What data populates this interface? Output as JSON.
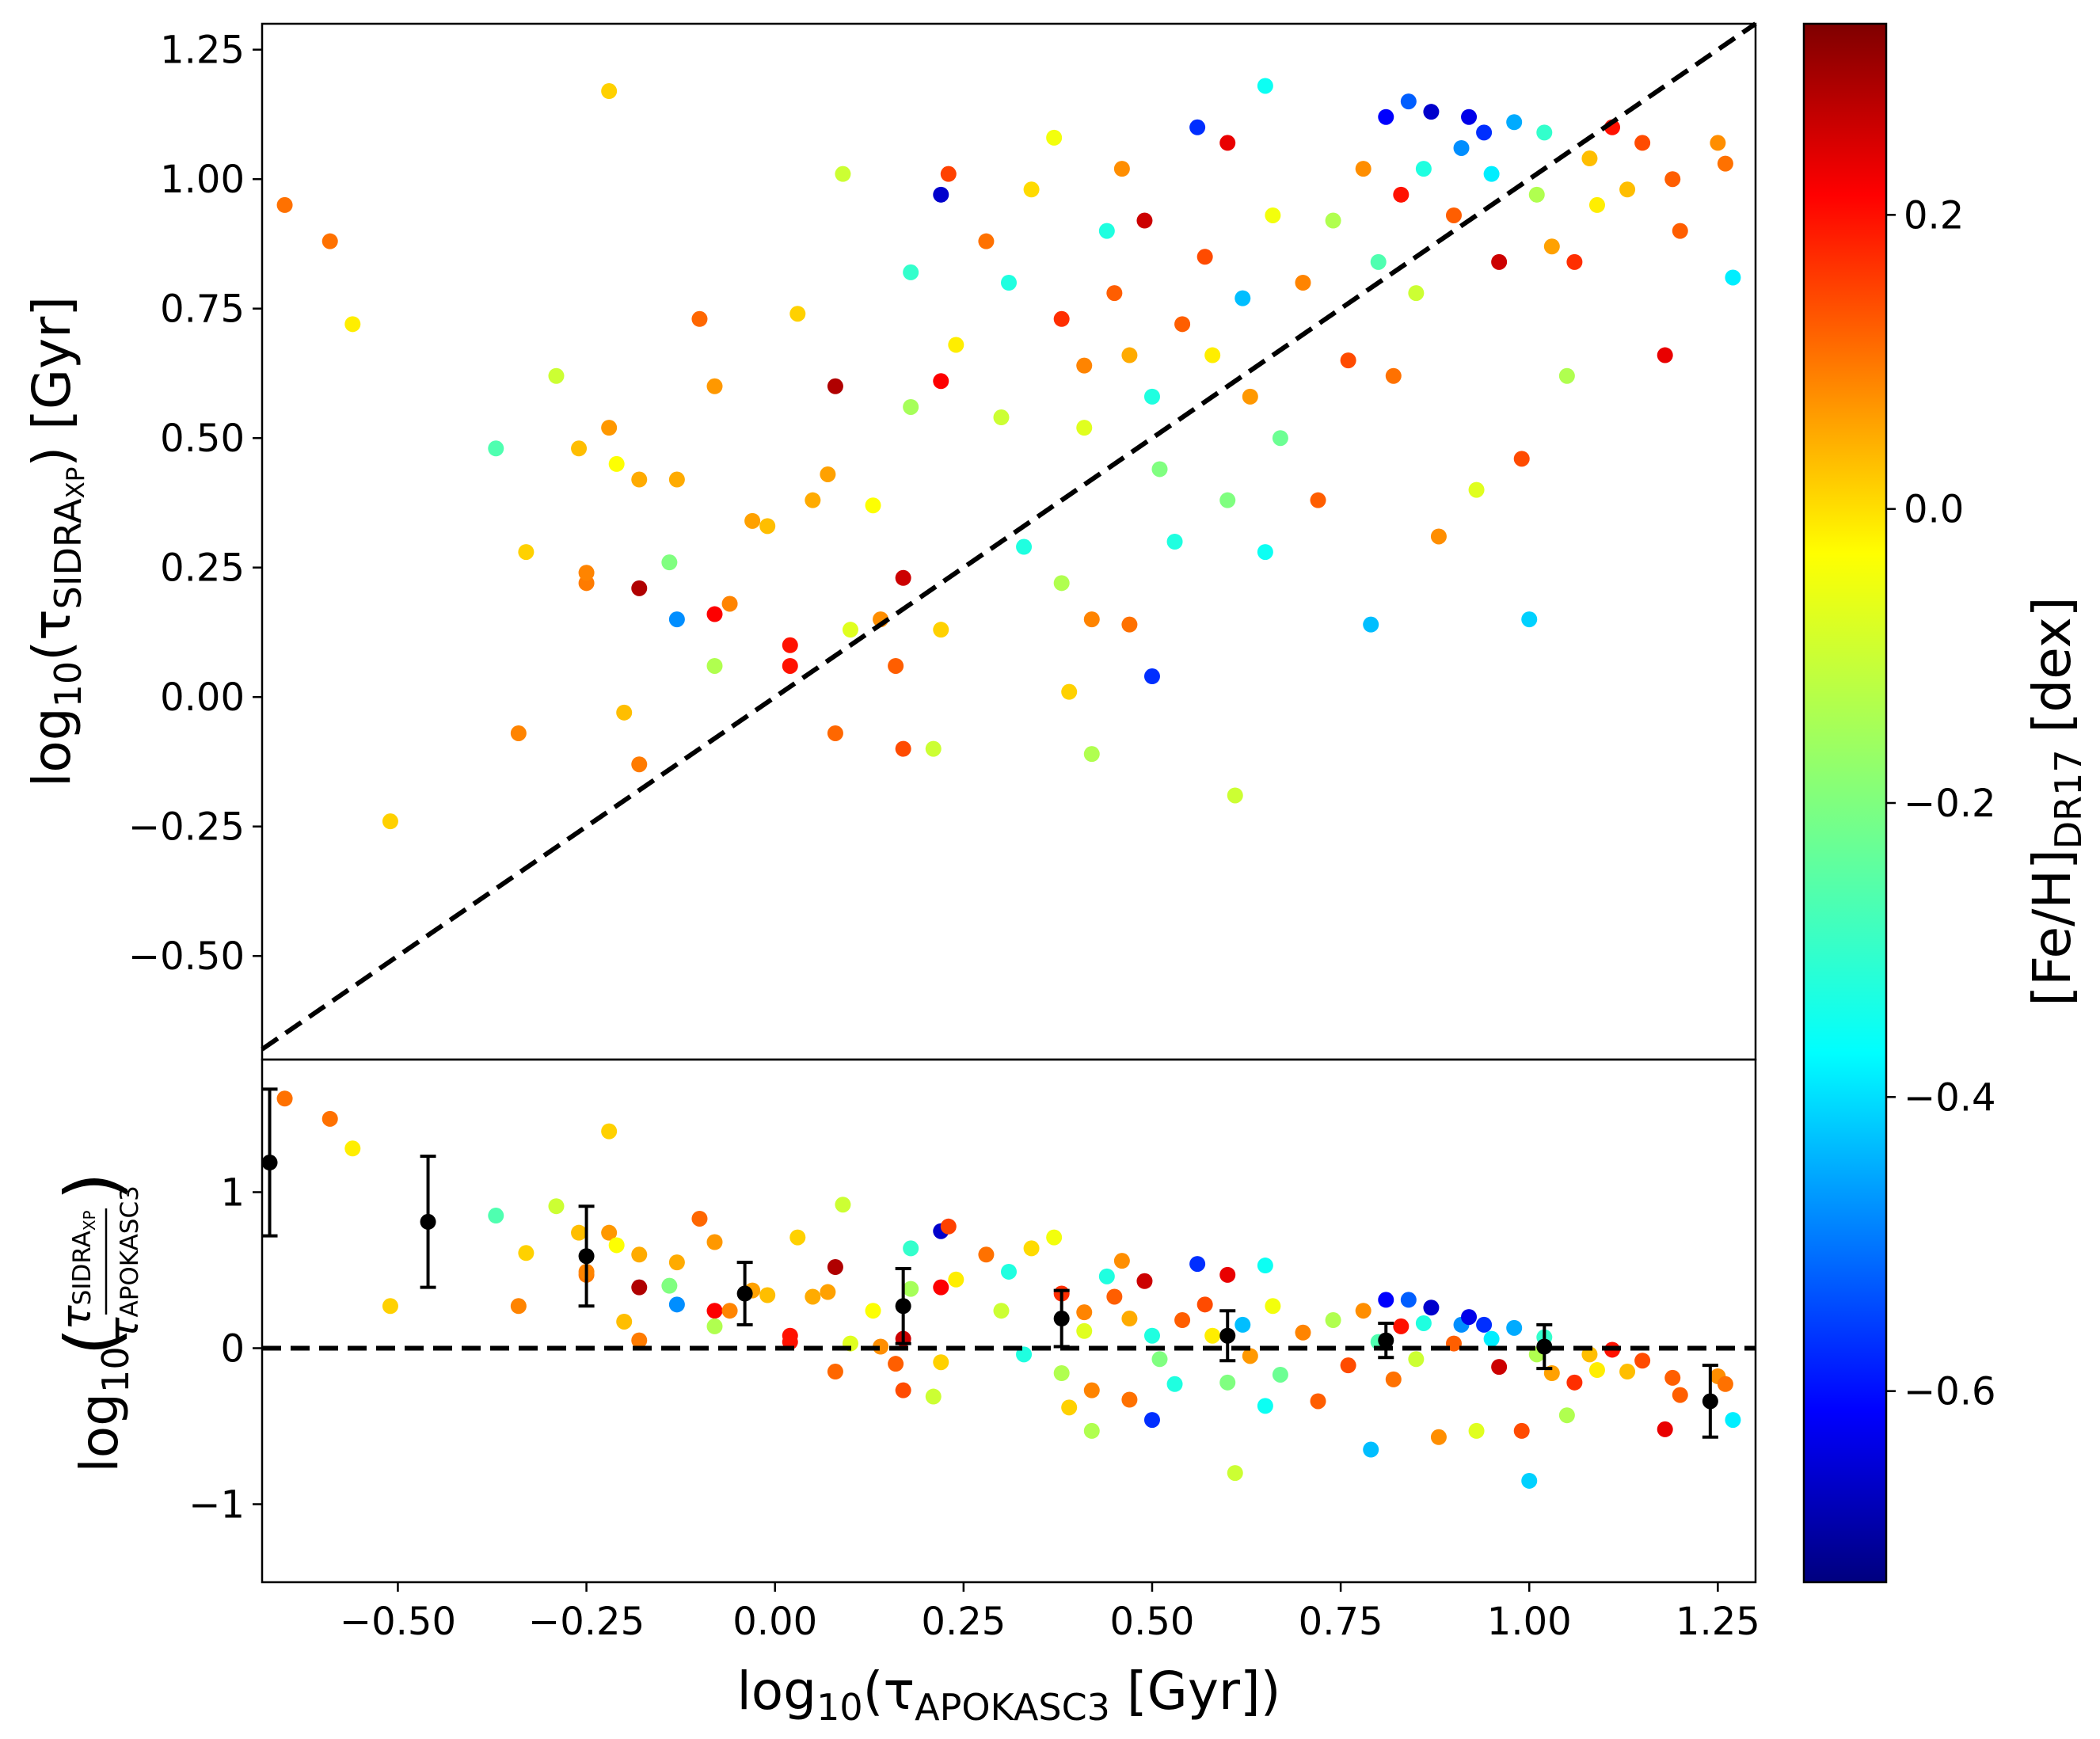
{
  "chart_data": [
    {
      "type": "scatter",
      "panel": "top",
      "xlabel": "log10(τAPOKASC3 [Gyr])",
      "ylabel": "log10(τSIDRAXP) [Gyr]",
      "xlim": [
        -0.68,
        1.3
      ],
      "ylim": [
        -0.7,
        1.3
      ],
      "x_ticks": [
        "−0.50",
        "−0.25",
        "0.00",
        "0.25",
        "0.50",
        "0.75",
        "1.00",
        "1.25"
      ],
      "y_ticks": [
        "−0.50",
        "−0.25",
        "0.00",
        "0.25",
        "0.50",
        "0.75",
        "1.00",
        "1.25"
      ],
      "reference_line": {
        "style": "dashed",
        "color": "#000000",
        "relation": "y = x"
      },
      "color_by": "[Fe/H]DR17",
      "points": [
        {
          "x": -0.65,
          "y": 0.95,
          "feh": 0.08
        },
        {
          "x": -0.59,
          "y": 0.88,
          "feh": 0.08
        },
        {
          "x": -0.56,
          "y": 0.72,
          "feh": -0.05
        },
        {
          "x": -0.51,
          "y": -0.24,
          "feh": -0.02
        },
        {
          "x": -0.37,
          "y": 0.48,
          "feh": -0.25
        },
        {
          "x": -0.34,
          "y": -0.07,
          "feh": 0.06
        },
        {
          "x": -0.33,
          "y": 0.28,
          "feh": -0.02
        },
        {
          "x": -0.29,
          "y": 0.62,
          "feh": -0.12
        },
        {
          "x": -0.26,
          "y": 0.48,
          "feh": 0.0
        },
        {
          "x": -0.25,
          "y": 0.22,
          "feh": 0.07
        },
        {
          "x": -0.25,
          "y": 0.24,
          "feh": 0.06
        },
        {
          "x": -0.22,
          "y": 1.17,
          "feh": -0.02
        },
        {
          "x": -0.22,
          "y": 0.52,
          "feh": 0.04
        },
        {
          "x": -0.21,
          "y": 0.45,
          "feh": -0.07
        },
        {
          "x": -0.2,
          "y": -0.03,
          "feh": 0.0
        },
        {
          "x": -0.18,
          "y": 0.42,
          "feh": 0.02
        },
        {
          "x": -0.18,
          "y": 0.21,
          "feh": 0.28
        },
        {
          "x": -0.18,
          "y": -0.13,
          "feh": 0.07
        },
        {
          "x": -0.14,
          "y": 0.26,
          "feh": -0.2
        },
        {
          "x": -0.13,
          "y": 0.42,
          "feh": 0.02
        },
        {
          "x": -0.13,
          "y": 0.15,
          "feh": -0.45
        },
        {
          "x": -0.1,
          "y": 0.73,
          "feh": 0.09
        },
        {
          "x": -0.08,
          "y": 0.6,
          "feh": 0.04
        },
        {
          "x": -0.08,
          "y": 0.16,
          "feh": 0.2
        },
        {
          "x": -0.08,
          "y": 0.06,
          "feh": -0.15
        },
        {
          "x": -0.06,
          "y": 0.18,
          "feh": 0.06
        },
        {
          "x": -0.03,
          "y": 0.34,
          "feh": 0.03
        },
        {
          "x": -0.01,
          "y": 0.33,
          "feh": 0.0
        },
        {
          "x": 0.02,
          "y": 0.1,
          "feh": 0.18
        },
        {
          "x": 0.02,
          "y": 0.06,
          "feh": 0.18
        },
        {
          "x": 0.03,
          "y": 0.74,
          "feh": -0.02
        },
        {
          "x": 0.05,
          "y": 0.38,
          "feh": 0.02
        },
        {
          "x": 0.07,
          "y": 0.43,
          "feh": 0.03
        },
        {
          "x": 0.08,
          "y": 0.6,
          "feh": 0.28
        },
        {
          "x": 0.08,
          "y": -0.07,
          "feh": 0.09
        },
        {
          "x": 0.09,
          "y": 1.01,
          "feh": -0.12
        },
        {
          "x": 0.1,
          "y": 0.13,
          "feh": -0.1
        },
        {
          "x": 0.13,
          "y": 0.37,
          "feh": -0.07
        },
        {
          "x": 0.14,
          "y": 0.15,
          "feh": 0.05
        },
        {
          "x": 0.16,
          "y": 0.06,
          "feh": 0.1
        },
        {
          "x": 0.17,
          "y": 0.23,
          "feh": 0.25
        },
        {
          "x": 0.17,
          "y": -0.1,
          "feh": 0.12
        },
        {
          "x": 0.18,
          "y": 0.82,
          "feh": -0.28
        },
        {
          "x": 0.18,
          "y": 0.56,
          "feh": -0.16
        },
        {
          "x": 0.21,
          "y": -0.1,
          "feh": -0.12
        },
        {
          "x": 0.22,
          "y": 0.61,
          "feh": 0.2
        },
        {
          "x": 0.22,
          "y": 0.97,
          "feh": -0.65
        },
        {
          "x": 0.23,
          "y": 1.01,
          "feh": 0.13
        },
        {
          "x": 0.22,
          "y": 0.13,
          "feh": -0.02
        },
        {
          "x": 0.24,
          "y": 0.68,
          "feh": -0.05
        },
        {
          "x": 0.28,
          "y": 0.88,
          "feh": 0.08
        },
        {
          "x": 0.3,
          "y": 0.54,
          "feh": -0.12
        },
        {
          "x": 0.31,
          "y": 0.8,
          "feh": -0.3
        },
        {
          "x": 0.33,
          "y": 0.29,
          "feh": -0.3
        },
        {
          "x": 0.34,
          "y": 0.98,
          "feh": -0.03
        },
        {
          "x": 0.37,
          "y": 1.08,
          "feh": -0.08
        },
        {
          "x": 0.38,
          "y": 0.73,
          "feh": 0.15
        },
        {
          "x": 0.38,
          "y": 0.22,
          "feh": -0.15
        },
        {
          "x": 0.39,
          "y": 0.01,
          "feh": -0.02
        },
        {
          "x": 0.41,
          "y": 0.64,
          "feh": 0.06
        },
        {
          "x": 0.41,
          "y": 0.52,
          "feh": -0.1
        },
        {
          "x": 0.42,
          "y": 0.15,
          "feh": 0.06
        },
        {
          "x": 0.42,
          "y": -0.11,
          "feh": -0.15
        },
        {
          "x": 0.44,
          "y": 0.9,
          "feh": -0.3
        },
        {
          "x": 0.45,
          "y": 0.78,
          "feh": 0.1
        },
        {
          "x": 0.46,
          "y": 1.02,
          "feh": 0.05
        },
        {
          "x": 0.47,
          "y": 0.66,
          "feh": 0.02
        },
        {
          "x": 0.47,
          "y": 0.14,
          "feh": 0.08
        },
        {
          "x": 0.49,
          "y": 0.92,
          "feh": 0.25
        },
        {
          "x": 0.5,
          "y": 0.58,
          "feh": -0.3
        },
        {
          "x": 0.5,
          "y": 0.04,
          "feh": -0.55
        },
        {
          "x": 0.51,
          "y": 0.44,
          "feh": -0.2
        },
        {
          "x": 0.53,
          "y": 0.3,
          "feh": -0.3
        },
        {
          "x": 0.54,
          "y": 0.72,
          "feh": 0.1
        },
        {
          "x": 0.56,
          "y": 1.1,
          "feh": -0.55
        },
        {
          "x": 0.57,
          "y": 0.85,
          "feh": 0.12
        },
        {
          "x": 0.58,
          "y": 0.66,
          "feh": -0.05
        },
        {
          "x": 0.6,
          "y": 1.07,
          "feh": 0.22
        },
        {
          "x": 0.6,
          "y": 0.38,
          "feh": -0.2
        },
        {
          "x": 0.61,
          "y": -0.19,
          "feh": -0.12
        },
        {
          "x": 0.62,
          "y": 0.77,
          "feh": -0.4
        },
        {
          "x": 0.63,
          "y": 0.58,
          "feh": 0.04
        },
        {
          "x": 0.65,
          "y": 1.18,
          "feh": -0.32
        },
        {
          "x": 0.65,
          "y": 0.28,
          "feh": -0.32
        },
        {
          "x": 0.66,
          "y": 0.93,
          "feh": -0.08
        },
        {
          "x": 0.67,
          "y": 0.5,
          "feh": -0.22
        },
        {
          "x": 0.7,
          "y": 0.8,
          "feh": 0.06
        },
        {
          "x": 0.72,
          "y": 0.38,
          "feh": 0.1
        },
        {
          "x": 0.74,
          "y": 0.92,
          "feh": -0.15
        },
        {
          "x": 0.76,
          "y": 0.65,
          "feh": 0.12
        },
        {
          "x": 0.78,
          "y": 1.02,
          "feh": 0.05
        },
        {
          "x": 0.79,
          "y": 0.14,
          "feh": -0.4
        },
        {
          "x": 0.8,
          "y": 0.84,
          "feh": -0.25
        },
        {
          "x": 0.81,
          "y": 1.12,
          "feh": -0.6
        },
        {
          "x": 0.82,
          "y": 0.62,
          "feh": 0.08
        },
        {
          "x": 0.83,
          "y": 0.97,
          "feh": 0.18
        },
        {
          "x": 0.84,
          "y": 1.15,
          "feh": -0.5
        },
        {
          "x": 0.85,
          "y": 0.78,
          "feh": -0.12
        },
        {
          "x": 0.86,
          "y": 1.02,
          "feh": -0.3
        },
        {
          "x": 0.87,
          "y": 1.13,
          "feh": -0.65
        },
        {
          "x": 0.88,
          "y": 0.31,
          "feh": 0.05
        },
        {
          "x": 0.9,
          "y": 0.93,
          "feh": 0.1
        },
        {
          "x": 0.91,
          "y": 1.06,
          "feh": -0.45
        },
        {
          "x": 0.92,
          "y": 1.12,
          "feh": -0.62
        },
        {
          "x": 0.93,
          "y": 0.4,
          "feh": -0.1
        },
        {
          "x": 0.94,
          "y": 1.09,
          "feh": -0.55
        },
        {
          "x": 0.95,
          "y": 1.01,
          "feh": -0.35
        },
        {
          "x": 0.96,
          "y": 0.84,
          "feh": 0.25
        },
        {
          "x": 0.98,
          "y": 1.11,
          "feh": -0.42
        },
        {
          "x": 0.99,
          "y": 0.46,
          "feh": 0.12
        },
        {
          "x": 1.0,
          "y": 0.15,
          "feh": -0.38
        },
        {
          "x": 1.01,
          "y": 0.97,
          "feh": -0.15
        },
        {
          "x": 1.02,
          "y": 1.09,
          "feh": -0.28
        },
        {
          "x": 1.03,
          "y": 0.87,
          "feh": 0.03
        },
        {
          "x": 1.05,
          "y": 0.62,
          "feh": -0.15
        },
        {
          "x": 1.06,
          "y": 0.84,
          "feh": 0.15
        },
        {
          "x": 1.08,
          "y": 1.04,
          "feh": 0.0
        },
        {
          "x": 1.09,
          "y": 0.95,
          "feh": -0.05
        },
        {
          "x": 1.11,
          "y": 1.1,
          "feh": 0.18
        },
        {
          "x": 1.13,
          "y": 0.98,
          "feh": 0.0
        },
        {
          "x": 1.15,
          "y": 1.07,
          "feh": 0.12
        },
        {
          "x": 1.18,
          "y": 0.66,
          "feh": 0.22
        },
        {
          "x": 1.19,
          "y": 1.0,
          "feh": 0.1
        },
        {
          "x": 1.2,
          "y": 0.9,
          "feh": 0.1
        },
        {
          "x": 1.25,
          "y": 1.07,
          "feh": 0.05
        },
        {
          "x": 1.26,
          "y": 1.03,
          "feh": 0.08
        },
        {
          "x": 1.27,
          "y": 0.81,
          "feh": -0.35
        }
      ]
    },
    {
      "type": "scatter",
      "panel": "bottom",
      "xlabel": "log10(τAPOKASC3 [Gyr])",
      "ylabel": "log10(τSIDRAXP / τAPOKASC3)",
      "xlim": [
        -0.68,
        1.3
      ],
      "ylim": [
        -1.5,
        1.85
      ],
      "x_ticks": [
        "−0.50",
        "−0.25",
        "0.00",
        "0.25",
        "0.50",
        "0.75",
        "1.00",
        "1.25"
      ],
      "y_ticks": [
        "−1",
        "0",
        "1"
      ],
      "reference_line": {
        "style": "dashed",
        "color": "#000000",
        "relation": "y = 0"
      },
      "binned_medians": [
        {
          "x": -0.67,
          "y": 1.19,
          "yerr_low": 0.47,
          "yerr_high": 0.47
        },
        {
          "x": -0.46,
          "y": 0.81,
          "yerr_low": 0.42,
          "yerr_high": 0.42
        },
        {
          "x": -0.25,
          "y": 0.59,
          "yerr_low": 0.32,
          "yerr_high": 0.32
        },
        {
          "x": -0.04,
          "y": 0.35,
          "yerr_low": 0.2,
          "yerr_high": 0.2
        },
        {
          "x": 0.17,
          "y": 0.27,
          "yerr_low": 0.24,
          "yerr_high": 0.24
        },
        {
          "x": 0.38,
          "y": 0.19,
          "yerr_low": 0.18,
          "yerr_high": 0.18
        },
        {
          "x": 0.6,
          "y": 0.08,
          "yerr_low": 0.16,
          "yerr_high": 0.16
        },
        {
          "x": 0.81,
          "y": 0.05,
          "yerr_low": 0.11,
          "yerr_high": 0.11
        },
        {
          "x": 1.02,
          "y": 0.01,
          "yerr_low": 0.14,
          "yerr_high": 0.14
        },
        {
          "x": 1.24,
          "y": -0.34,
          "yerr_low": 0.23,
          "yerr_high": 0.23
        }
      ]
    }
  ],
  "colorbar": {
    "label": "[Fe/H]DR17 [dex]",
    "range": [
      -0.73,
      0.33
    ],
    "ticks": [
      "0.2",
      "0.0",
      "−0.2",
      "−0.4",
      "−0.6"
    ],
    "tick_values": [
      0.2,
      0.0,
      -0.2,
      -0.4,
      -0.6
    ],
    "cmap": "jet"
  },
  "labels": {
    "top_ylabel_main": "log",
    "top_ylabel_sub": "10",
    "top_ylabel_open": "(τ",
    "top_ylabel_sidra": "SIDRA",
    "top_ylabel_xp": "XP",
    "top_ylabel_close": ") [Gyr]",
    "bottom_ylabel_main": "log",
    "bottom_ylabel_sub": "10",
    "bottom_frac_num": "SIDRA",
    "bottom_frac_num_xp": "XP",
    "bottom_frac_den": "APOKASC3",
    "xlabel_main": "log",
    "xlabel_sub": "10",
    "xlabel_open": "(τ",
    "xlabel_apokasc": "APOKASC3",
    "xlabel_close": " [Gyr])",
    "cbar_main": "[Fe/H]",
    "cbar_sub": "DR17",
    "cbar_unit": " [dex]"
  },
  "colors": {
    "axis": "#000000",
    "reference_line": "#000000",
    "median_points": "#000000"
  }
}
